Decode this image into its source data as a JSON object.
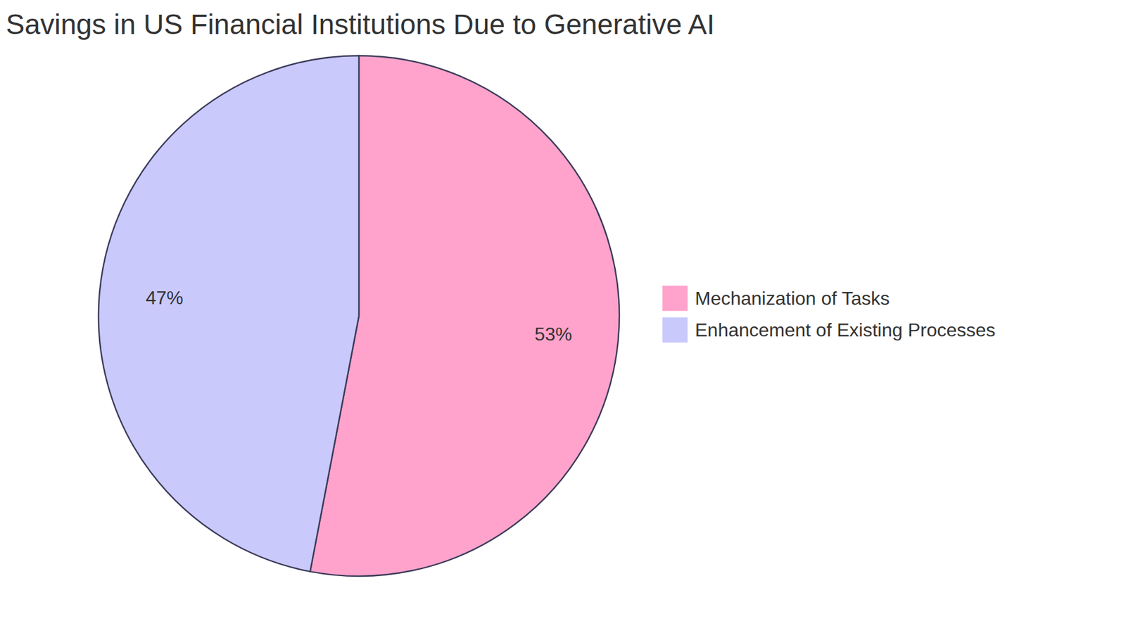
{
  "chart_data": {
    "type": "pie",
    "title": "Savings in US Financial Institutions Due to Generative AI",
    "categories": [
      "Mechanization of Tasks",
      "Enhancement of Existing Processes"
    ],
    "values": [
      53,
      47
    ],
    "value_labels": [
      "53%",
      "47%"
    ],
    "colors": [
      "#ffa3cc",
      "#c9c9fc"
    ],
    "data_labels": true,
    "legend": "right"
  }
}
